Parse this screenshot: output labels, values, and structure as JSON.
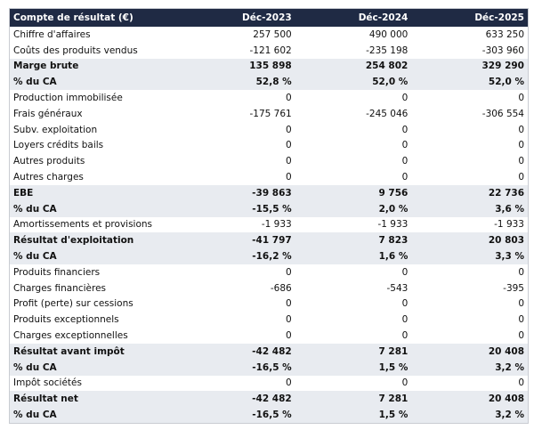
{
  "table": {
    "header": [
      "Compte de résultat (€)",
      "Déc-2023",
      "Déc-2024",
      "Déc-2025"
    ],
    "rows": [
      {
        "cells": [
          "Chiffre d'affaires",
          "257 500",
          "490 000",
          "633 250"
        ]
      },
      {
        "cells": [
          "Coûts des produits vendus",
          "-121 602",
          "-235 198",
          "-303 960"
        ]
      },
      {
        "cells": [
          "Marge brute",
          "135 898",
          "254 802",
          "329 290"
        ],
        "bold": true
      },
      {
        "cells": [
          "% du CA",
          "52,8 %",
          "52,0 %",
          "52,0 %"
        ],
        "bold": true
      },
      {
        "cells": [
          "Production immobilisée",
          "0",
          "0",
          "0"
        ]
      },
      {
        "cells": [
          "Frais généraux",
          "-175 761",
          "-245 046",
          "-306 554"
        ]
      },
      {
        "cells": [
          "Subv. exploitation",
          "0",
          "0",
          "0"
        ]
      },
      {
        "cells": [
          "Loyers crédits bails",
          "0",
          "0",
          "0"
        ]
      },
      {
        "cells": [
          "Autres produits",
          "0",
          "0",
          "0"
        ]
      },
      {
        "cells": [
          "Autres charges",
          "0",
          "0",
          "0"
        ]
      },
      {
        "cells": [
          "EBE",
          "-39 863",
          "9 756",
          "22 736"
        ],
        "bold": true
      },
      {
        "cells": [
          "% du CA",
          "-15,5 %",
          "2,0 %",
          "3,6 %"
        ],
        "bold": true
      },
      {
        "cells": [
          "Amortissements et provisions",
          "-1 933",
          "-1 933",
          "-1 933"
        ]
      },
      {
        "cells": [
          "Résultat d'exploitation",
          "-41 797",
          "7 823",
          "20 803"
        ],
        "bold": true
      },
      {
        "cells": [
          "% du CA",
          "-16,2 %",
          "1,6 %",
          "3,3 %"
        ],
        "bold": true
      },
      {
        "cells": [
          "Produits financiers",
          "0",
          "0",
          "0"
        ]
      },
      {
        "cells": [
          "Charges financières",
          "-686",
          "-543",
          "-395"
        ]
      },
      {
        "cells": [
          "Profit (perte) sur cessions",
          "0",
          "0",
          "0"
        ]
      },
      {
        "cells": [
          "Produits exceptionnels",
          "0",
          "0",
          "0"
        ]
      },
      {
        "cells": [
          "Charges exceptionnelles",
          "0",
          "0",
          "0"
        ]
      },
      {
        "cells": [
          "Résultat avant impôt",
          "-42 482",
          "7 281",
          "20 408"
        ],
        "bold": true
      },
      {
        "cells": [
          "% du CA",
          "-16,5 %",
          "1,5 %",
          "3,2 %"
        ],
        "bold": true
      },
      {
        "cells": [
          "Impôt sociétés",
          "0",
          "0",
          "0"
        ]
      },
      {
        "cells": [
          "Résultat net",
          "-42 482",
          "7 281",
          "20 408"
        ],
        "bold": true
      },
      {
        "cells": [
          "% du CA",
          "-16,5 %",
          "1,5 %",
          "3,2 %"
        ],
        "bold": true
      }
    ]
  }
}
